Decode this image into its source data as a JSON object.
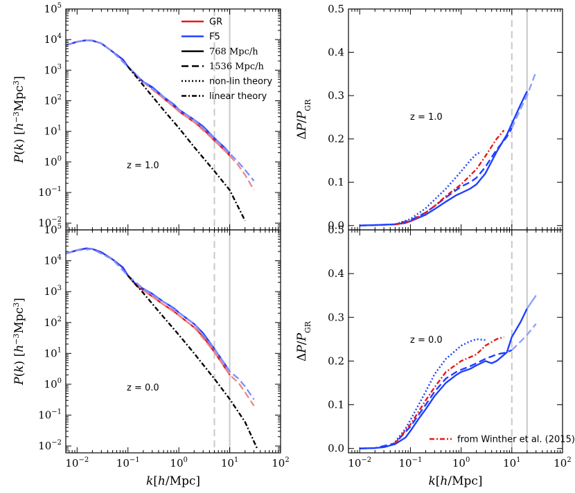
{
  "chart_data": [
    {
      "panel": "top-left",
      "type": "line",
      "xscale": "log",
      "yscale": "log",
      "xlim": [
        0.006,
        100
      ],
      "ylim": [
        0.006,
        100000
      ],
      "xlabel": "",
      "ylabel": "P(k) [h^{-3}Mpc^3]",
      "xticks": [
        0.01,
        0.1,
        1,
        10,
        100
      ],
      "yticks": [
        0.01,
        0.1,
        1,
        10,
        100,
        1000,
        10000,
        100000
      ],
      "annotation": "z = 1.0",
      "vlines": [
        {
          "x": 5,
          "style": "dashed"
        },
        {
          "x": 10,
          "style": "solid"
        }
      ],
      "series": [
        {
          "name": "GR",
          "color": "#e31a1c",
          "dash": "solid",
          "x": [
            0.006,
            0.01,
            0.015,
            0.02,
            0.03,
            0.05,
            0.08,
            0.1,
            0.15,
            0.2,
            0.3,
            0.5,
            0.8,
            1,
            2,
            3,
            5,
            8,
            10
          ],
          "y": [
            6500,
            8500,
            9500,
            9300,
            7500,
            4000,
            2200,
            1300,
            640,
            400,
            260,
            120,
            65,
            45,
            20,
            12,
            5,
            2.4,
            1.6
          ]
        },
        {
          "name": "F5",
          "color": "#1f3fff",
          "dash": "solid",
          "x": [
            0.006,
            0.01,
            0.015,
            0.02,
            0.03,
            0.05,
            0.08,
            0.1,
            0.15,
            0.2,
            0.3,
            0.5,
            0.8,
            1,
            2,
            3,
            5,
            8,
            10
          ],
          "y": [
            6500,
            8500,
            9500,
            9300,
            7500,
            4000,
            2200,
            1300,
            660,
            420,
            280,
            135,
            75,
            52,
            24,
            14.5,
            6,
            2.9,
            1.9
          ]
        },
        {
          "name": "GR 1536",
          "color": "#ee8888",
          "dash": "dashed",
          "x": [
            0.006,
            0.01,
            0.015,
            0.02,
            0.03,
            0.05,
            0.1,
            0.2,
            0.5,
            1,
            2,
            5,
            10,
            15,
            20,
            30
          ],
          "y": [
            6500,
            8500,
            9500,
            9300,
            7500,
            4000,
            1300,
            400,
            120,
            45,
            20,
            5,
            1.6,
            0.75,
            0.38,
            0.12
          ]
        },
        {
          "name": "F5 1536",
          "color": "#7f8fff",
          "dash": "dashed",
          "x": [
            0.006,
            0.01,
            0.015,
            0.02,
            0.03,
            0.05,
            0.1,
            0.2,
            0.5,
            1,
            2,
            5,
            10,
            15,
            20,
            30
          ],
          "y": [
            6500,
            8500,
            9500,
            9300,
            7500,
            4000,
            1300,
            420,
            135,
            52,
            24,
            6,
            1.9,
            0.95,
            0.55,
            0.24
          ]
        },
        {
          "name": "linear theory",
          "color": "#000000",
          "dash": "dashdot",
          "x": [
            0.1,
            0.2,
            0.5,
            1,
            2,
            5,
            10,
            20
          ],
          "y": [
            1300,
            320,
            50,
            13,
            3.1,
            0.5,
            0.12,
            0.012
          ]
        }
      ]
    },
    {
      "panel": "bottom-left",
      "type": "line",
      "xscale": "log",
      "yscale": "log",
      "xlim": [
        0.006,
        100
      ],
      "ylim": [
        0.006,
        100000
      ],
      "xlabel": "k[h/Mpc]",
      "ylabel": "P(k) [h^{-3}Mpc^3]",
      "xticks": [
        0.01,
        0.1,
        1,
        10,
        100
      ],
      "yticks": [
        0.01,
        0.1,
        1,
        10,
        100,
        1000,
        10000,
        100000
      ],
      "annotation": "z = 0.0",
      "vlines": [
        {
          "x": 5,
          "style": "dashed"
        },
        {
          "x": 10,
          "style": "solid"
        }
      ],
      "series": [
        {
          "name": "GR",
          "color": "#e31a1c",
          "dash": "solid",
          "x": [
            0.006,
            0.01,
            0.015,
            0.02,
            0.03,
            0.05,
            0.08,
            0.1,
            0.15,
            0.2,
            0.3,
            0.5,
            0.8,
            1,
            2,
            3,
            5,
            8,
            10
          ],
          "y": [
            17000,
            22000,
            25000,
            24000,
            19000,
            11000,
            6000,
            3300,
            1500,
            1100,
            700,
            380,
            230,
            170,
            70,
            35,
            11,
            3.5,
            2
          ]
        },
        {
          "name": "F5",
          "color": "#1f3fff",
          "dash": "solid",
          "x": [
            0.006,
            0.01,
            0.015,
            0.02,
            0.03,
            0.05,
            0.08,
            0.1,
            0.15,
            0.2,
            0.3,
            0.5,
            0.8,
            1,
            2,
            3,
            5,
            8,
            10
          ],
          "y": [
            17000,
            22000,
            25000,
            24000,
            19000,
            11000,
            6000,
            3300,
            1600,
            1250,
            850,
            470,
            290,
            210,
            90,
            45,
            14,
            4.5,
            2.6
          ]
        },
        {
          "name": "GR 1536",
          "color": "#ee8888",
          "dash": "dashed",
          "x": [
            0.006,
            0.01,
            0.02,
            0.05,
            0.1,
            0.2,
            0.5,
            1,
            2,
            5,
            10,
            15,
            20,
            30
          ],
          "y": [
            17000,
            22000,
            24000,
            11000,
            3300,
            1100,
            380,
            170,
            70,
            11,
            2,
            1.1,
            0.55,
            0.2
          ]
        },
        {
          "name": "F5 1536",
          "color": "#7f8fff",
          "dash": "dashed",
          "x": [
            0.006,
            0.01,
            0.02,
            0.05,
            0.1,
            0.2,
            0.5,
            1,
            2,
            5,
            10,
            15,
            20,
            30
          ],
          "y": [
            17000,
            22000,
            24000,
            11000,
            3300,
            1250,
            470,
            210,
            90,
            14,
            2.6,
            1.5,
            0.85,
            0.32
          ]
        },
        {
          "name": "linear theory",
          "color": "#000000",
          "dash": "dashdot",
          "x": [
            0.1,
            0.2,
            0.5,
            1,
            2,
            5,
            10,
            20,
            35
          ],
          "y": [
            3300,
            900,
            150,
            40,
            10,
            1.5,
            0.33,
            0.06,
            0.008
          ]
        }
      ]
    },
    {
      "panel": "top-right",
      "type": "line",
      "xscale": "log",
      "yscale": "linear",
      "xlim": [
        0.006,
        100
      ],
      "ylim": [
        -0.01,
        0.5
      ],
      "xlabel": "",
      "ylabel": "ΔP/P_GR",
      "xticks": [
        0.01,
        0.1,
        1,
        10,
        100
      ],
      "yticks": [
        0.0,
        0.1,
        0.2,
        0.3,
        0.4,
        0.5
      ],
      "annotation": "z = 1.0",
      "vlines": [
        {
          "x": 10,
          "style": "dashed"
        },
        {
          "x": 20,
          "style": "solid"
        }
      ],
      "series": [
        {
          "name": "F5 768",
          "color": "#1f3fff",
          "dash": "solid",
          "x": [
            0.01,
            0.02,
            0.05,
            0.08,
            0.1,
            0.2,
            0.3,
            0.5,
            0.8,
            1,
            1.5,
            2,
            3,
            5,
            8,
            10,
            15,
            20
          ],
          "y": [
            0,
            0.001,
            0.003,
            0.006,
            0.01,
            0.025,
            0.038,
            0.055,
            0.07,
            0.075,
            0.085,
            0.095,
            0.12,
            0.17,
            0.21,
            0.235,
            0.28,
            0.31
          ]
        },
        {
          "name": "F5 1536",
          "color": "#1f3fff",
          "dash": "dashed",
          "x": [
            0.01,
            0.02,
            0.05,
            0.1,
            0.2,
            0.3,
            0.5,
            1,
            1.5,
            2,
            3,
            5,
            8,
            10
          ],
          "y": [
            0,
            0.001,
            0.003,
            0.012,
            0.03,
            0.045,
            0.065,
            0.09,
            0.1,
            0.11,
            0.135,
            0.175,
            0.205,
            0.225
          ]
        },
        {
          "name": "F5 1536 extended",
          "color": "#8f9fff",
          "dash": "dashed",
          "x": [
            10,
            15,
            20,
            30
          ],
          "y": [
            0.225,
            0.27,
            0.3,
            0.355
          ]
        },
        {
          "name": "non-lin theory",
          "color": "#1f3fff",
          "dash": "dotted",
          "x": [
            0.05,
            0.1,
            0.2,
            0.3,
            0.5,
            1,
            1.5,
            2,
            2.5
          ],
          "y": [
            0.003,
            0.015,
            0.04,
            0.06,
            0.085,
            0.125,
            0.15,
            0.165,
            0.17
          ]
        },
        {
          "name": "from Winther et al. (2015)",
          "color": "#e31a1c",
          "dash": "dashdot",
          "x": [
            0.05,
            0.1,
            0.2,
            0.3,
            0.5,
            1,
            2,
            3,
            5,
            7
          ],
          "y": [
            0.002,
            0.01,
            0.03,
            0.045,
            0.068,
            0.095,
            0.13,
            0.16,
            0.2,
            0.22
          ]
        }
      ]
    },
    {
      "panel": "bottom-right",
      "type": "line",
      "xscale": "log",
      "yscale": "linear",
      "xlim": [
        0.006,
        100
      ],
      "ylim": [
        -0.01,
        0.5
      ],
      "xlabel": "k[h/Mpc]",
      "ylabel": "ΔP/P_GR",
      "xticks": [
        0.01,
        0.1,
        1,
        10,
        100
      ],
      "yticks": [
        0.0,
        0.1,
        0.2,
        0.3,
        0.4,
        0.5
      ],
      "annotation": "z = 0.0",
      "vlines": [
        {
          "x": 10,
          "style": "dashed"
        },
        {
          "x": 20,
          "style": "solid"
        }
      ],
      "series": [
        {
          "name": "F5 768",
          "color": "#1f3fff",
          "dash": "solid",
          "x": [
            0.01,
            0.02,
            0.03,
            0.05,
            0.08,
            0.1,
            0.15,
            0.2,
            0.3,
            0.5,
            0.8,
            1,
            1.5,
            2,
            3,
            4,
            5,
            8,
            10,
            15,
            20
          ],
          "y": [
            0,
            0.001,
            0.003,
            0.01,
            0.025,
            0.04,
            0.07,
            0.09,
            0.12,
            0.15,
            0.168,
            0.175,
            0.182,
            0.19,
            0.2,
            0.195,
            0.2,
            0.22,
            0.255,
            0.29,
            0.32
          ]
        },
        {
          "name": "F5 1536",
          "color": "#1f3fff",
          "dash": "dashed",
          "x": [
            0.01,
            0.02,
            0.05,
            0.1,
            0.2,
            0.3,
            0.5,
            0.8,
            1,
            1.5,
            2,
            3,
            5,
            8,
            10
          ],
          "y": [
            0,
            0.001,
            0.012,
            0.05,
            0.1,
            0.13,
            0.16,
            0.175,
            0.18,
            0.188,
            0.195,
            0.205,
            0.215,
            0.22,
            0.225
          ]
        },
        {
          "name": "F5 1536 extended",
          "color": "#8f9fff",
          "dash": "dashed",
          "x": [
            10,
            15,
            20,
            30
          ],
          "y": [
            0.225,
            0.245,
            0.26,
            0.285
          ]
        },
        {
          "name": "F5 768 extended",
          "color": "#8f9fff",
          "dash": "solid",
          "x": [
            20,
            30
          ],
          "y": [
            0.32,
            0.35
          ]
        },
        {
          "name": "non-lin theory",
          "color": "#1f3fff",
          "dash": "dotted",
          "x": [
            0.05,
            0.08,
            0.1,
            0.2,
            0.3,
            0.5,
            0.8,
            1,
            1.5,
            2,
            3
          ],
          "y": [
            0.015,
            0.045,
            0.065,
            0.13,
            0.17,
            0.205,
            0.225,
            0.235,
            0.245,
            0.25,
            0.248
          ]
        },
        {
          "name": "from Winther et al. (2015)",
          "color": "#e31a1c",
          "dash": "dashdot",
          "x": [
            0.05,
            0.1,
            0.2,
            0.3,
            0.5,
            1,
            2,
            3,
            5,
            7
          ],
          "y": [
            0.012,
            0.055,
            0.11,
            0.14,
            0.175,
            0.2,
            0.215,
            0.235,
            0.25,
            0.255
          ]
        }
      ]
    }
  ],
  "legend_left": [
    {
      "label": "GR",
      "color": "#e31a1c",
      "dash": "solid",
      "font": "sans"
    },
    {
      "label": "F5",
      "color": "#1f3fff",
      "dash": "solid",
      "font": "sans"
    },
    {
      "label": "768 Mpc/h",
      "color": "#000000",
      "dash": "solid",
      "font": "serif"
    },
    {
      "label": "1536 Mpc/h",
      "color": "#000000",
      "dash": "dashed",
      "font": "serif"
    },
    {
      "label": "non-lin theory",
      "color": "#000000",
      "dash": "dotted",
      "font": "sans"
    },
    {
      "label": "linear theory",
      "color": "#000000",
      "dash": "dashdot",
      "font": "sans"
    }
  ],
  "legend_right": [
    {
      "label": "from Winther et al. (2015)",
      "color": "#e31a1c",
      "dash": "dashdot",
      "font": "sans"
    }
  ]
}
